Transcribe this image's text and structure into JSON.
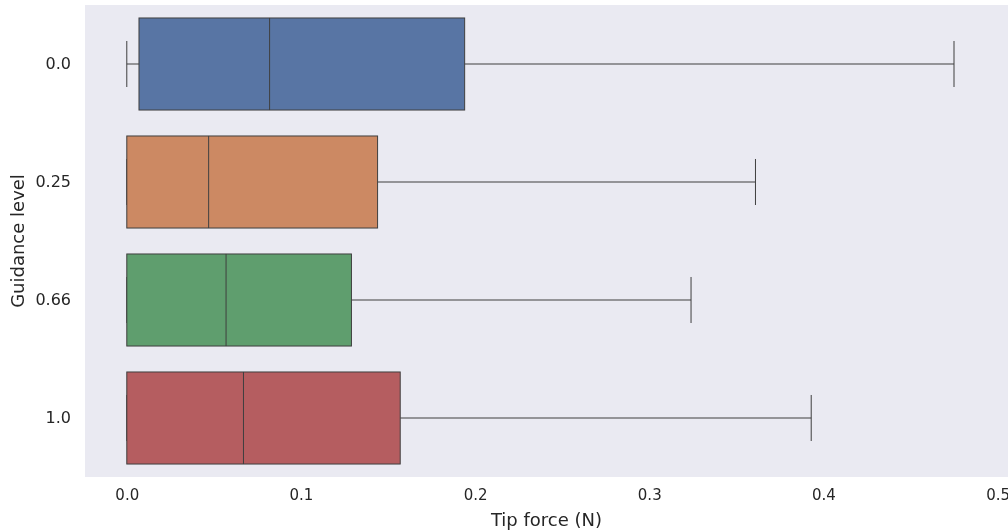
{
  "chart_data": {
    "type": "box",
    "orientation": "horizontal",
    "xlabel": "Tip force (N)",
    "ylabel": "Guidance level",
    "categories": [
      "0.0",
      "0.25",
      "0.66",
      "1.0"
    ],
    "colors": [
      "#5875a4",
      "#cc8963",
      "#5f9e6e",
      "#b55d60"
    ],
    "boxes": [
      {
        "low": 0.0,
        "q1": 0.007,
        "median": 0.082,
        "q3": 0.194,
        "high": 0.475
      },
      {
        "low": 0.0,
        "q1": 0.0,
        "median": 0.047,
        "q3": 0.144,
        "high": 0.361
      },
      {
        "low": 0.0,
        "q1": 0.0,
        "median": 0.057,
        "q3": 0.129,
        "high": 0.324
      },
      {
        "low": 0.0,
        "q1": 0.0,
        "median": 0.067,
        "q3": 0.157,
        "high": 0.393
      }
    ],
    "xlim": [
      -0.024,
      0.506
    ],
    "xticks": [
      {
        "value": 0,
        "label": "0.0"
      },
      0.1,
      0.2,
      0.3,
      0.4,
      0.5
    ],
    "grid": false
  }
}
